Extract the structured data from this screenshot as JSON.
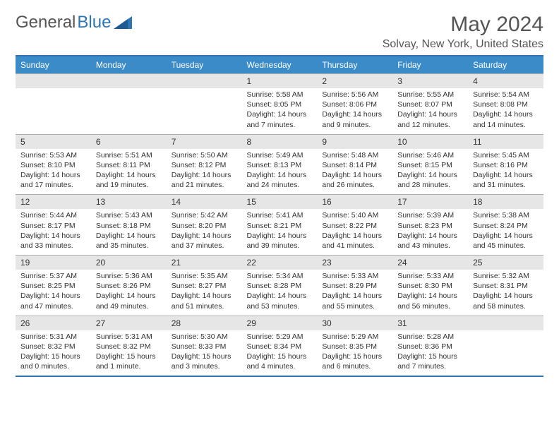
{
  "logo": {
    "text1": "General",
    "text2": "Blue"
  },
  "title": "May 2024",
  "location": "Solvay, New York, United States",
  "days": [
    "Sunday",
    "Monday",
    "Tuesday",
    "Wednesday",
    "Thursday",
    "Friday",
    "Saturday"
  ],
  "colors": {
    "header_bg": "#3b8bc9",
    "header_text": "#ffffff",
    "daynum_bg": "#e6e6e6",
    "border": "#2e75b6"
  },
  "weeks": [
    {
      "nums": [
        "",
        "",
        "",
        "1",
        "2",
        "3",
        "4"
      ],
      "cells": [
        {},
        {},
        {},
        {
          "sunrise": "Sunrise: 5:58 AM",
          "sunset": "Sunset: 8:05 PM",
          "day1": "Daylight: 14 hours",
          "day2": "and 7 minutes."
        },
        {
          "sunrise": "Sunrise: 5:56 AM",
          "sunset": "Sunset: 8:06 PM",
          "day1": "Daylight: 14 hours",
          "day2": "and 9 minutes."
        },
        {
          "sunrise": "Sunrise: 5:55 AM",
          "sunset": "Sunset: 8:07 PM",
          "day1": "Daylight: 14 hours",
          "day2": "and 12 minutes."
        },
        {
          "sunrise": "Sunrise: 5:54 AM",
          "sunset": "Sunset: 8:08 PM",
          "day1": "Daylight: 14 hours",
          "day2": "and 14 minutes."
        }
      ]
    },
    {
      "nums": [
        "5",
        "6",
        "7",
        "8",
        "9",
        "10",
        "11"
      ],
      "cells": [
        {
          "sunrise": "Sunrise: 5:53 AM",
          "sunset": "Sunset: 8:10 PM",
          "day1": "Daylight: 14 hours",
          "day2": "and 17 minutes."
        },
        {
          "sunrise": "Sunrise: 5:51 AM",
          "sunset": "Sunset: 8:11 PM",
          "day1": "Daylight: 14 hours",
          "day2": "and 19 minutes."
        },
        {
          "sunrise": "Sunrise: 5:50 AM",
          "sunset": "Sunset: 8:12 PM",
          "day1": "Daylight: 14 hours",
          "day2": "and 21 minutes."
        },
        {
          "sunrise": "Sunrise: 5:49 AM",
          "sunset": "Sunset: 8:13 PM",
          "day1": "Daylight: 14 hours",
          "day2": "and 24 minutes."
        },
        {
          "sunrise": "Sunrise: 5:48 AM",
          "sunset": "Sunset: 8:14 PM",
          "day1": "Daylight: 14 hours",
          "day2": "and 26 minutes."
        },
        {
          "sunrise": "Sunrise: 5:46 AM",
          "sunset": "Sunset: 8:15 PM",
          "day1": "Daylight: 14 hours",
          "day2": "and 28 minutes."
        },
        {
          "sunrise": "Sunrise: 5:45 AM",
          "sunset": "Sunset: 8:16 PM",
          "day1": "Daylight: 14 hours",
          "day2": "and 31 minutes."
        }
      ]
    },
    {
      "nums": [
        "12",
        "13",
        "14",
        "15",
        "16",
        "17",
        "18"
      ],
      "cells": [
        {
          "sunrise": "Sunrise: 5:44 AM",
          "sunset": "Sunset: 8:17 PM",
          "day1": "Daylight: 14 hours",
          "day2": "and 33 minutes."
        },
        {
          "sunrise": "Sunrise: 5:43 AM",
          "sunset": "Sunset: 8:18 PM",
          "day1": "Daylight: 14 hours",
          "day2": "and 35 minutes."
        },
        {
          "sunrise": "Sunrise: 5:42 AM",
          "sunset": "Sunset: 8:20 PM",
          "day1": "Daylight: 14 hours",
          "day2": "and 37 minutes."
        },
        {
          "sunrise": "Sunrise: 5:41 AM",
          "sunset": "Sunset: 8:21 PM",
          "day1": "Daylight: 14 hours",
          "day2": "and 39 minutes."
        },
        {
          "sunrise": "Sunrise: 5:40 AM",
          "sunset": "Sunset: 8:22 PM",
          "day1": "Daylight: 14 hours",
          "day2": "and 41 minutes."
        },
        {
          "sunrise": "Sunrise: 5:39 AM",
          "sunset": "Sunset: 8:23 PM",
          "day1": "Daylight: 14 hours",
          "day2": "and 43 minutes."
        },
        {
          "sunrise": "Sunrise: 5:38 AM",
          "sunset": "Sunset: 8:24 PM",
          "day1": "Daylight: 14 hours",
          "day2": "and 45 minutes."
        }
      ]
    },
    {
      "nums": [
        "19",
        "20",
        "21",
        "22",
        "23",
        "24",
        "25"
      ],
      "cells": [
        {
          "sunrise": "Sunrise: 5:37 AM",
          "sunset": "Sunset: 8:25 PM",
          "day1": "Daylight: 14 hours",
          "day2": "and 47 minutes."
        },
        {
          "sunrise": "Sunrise: 5:36 AM",
          "sunset": "Sunset: 8:26 PM",
          "day1": "Daylight: 14 hours",
          "day2": "and 49 minutes."
        },
        {
          "sunrise": "Sunrise: 5:35 AM",
          "sunset": "Sunset: 8:27 PM",
          "day1": "Daylight: 14 hours",
          "day2": "and 51 minutes."
        },
        {
          "sunrise": "Sunrise: 5:34 AM",
          "sunset": "Sunset: 8:28 PM",
          "day1": "Daylight: 14 hours",
          "day2": "and 53 minutes."
        },
        {
          "sunrise": "Sunrise: 5:33 AM",
          "sunset": "Sunset: 8:29 PM",
          "day1": "Daylight: 14 hours",
          "day2": "and 55 minutes."
        },
        {
          "sunrise": "Sunrise: 5:33 AM",
          "sunset": "Sunset: 8:30 PM",
          "day1": "Daylight: 14 hours",
          "day2": "and 56 minutes."
        },
        {
          "sunrise": "Sunrise: 5:32 AM",
          "sunset": "Sunset: 8:31 PM",
          "day1": "Daylight: 14 hours",
          "day2": "and 58 minutes."
        }
      ]
    },
    {
      "nums": [
        "26",
        "27",
        "28",
        "29",
        "30",
        "31",
        ""
      ],
      "cells": [
        {
          "sunrise": "Sunrise: 5:31 AM",
          "sunset": "Sunset: 8:32 PM",
          "day1": "Daylight: 15 hours",
          "day2": "and 0 minutes."
        },
        {
          "sunrise": "Sunrise: 5:31 AM",
          "sunset": "Sunset: 8:32 PM",
          "day1": "Daylight: 15 hours",
          "day2": "and 1 minute."
        },
        {
          "sunrise": "Sunrise: 5:30 AM",
          "sunset": "Sunset: 8:33 PM",
          "day1": "Daylight: 15 hours",
          "day2": "and 3 minutes."
        },
        {
          "sunrise": "Sunrise: 5:29 AM",
          "sunset": "Sunset: 8:34 PM",
          "day1": "Daylight: 15 hours",
          "day2": "and 4 minutes."
        },
        {
          "sunrise": "Sunrise: 5:29 AM",
          "sunset": "Sunset: 8:35 PM",
          "day1": "Daylight: 15 hours",
          "day2": "and 6 minutes."
        },
        {
          "sunrise": "Sunrise: 5:28 AM",
          "sunset": "Sunset: 8:36 PM",
          "day1": "Daylight: 15 hours",
          "day2": "and 7 minutes."
        },
        {}
      ]
    }
  ]
}
